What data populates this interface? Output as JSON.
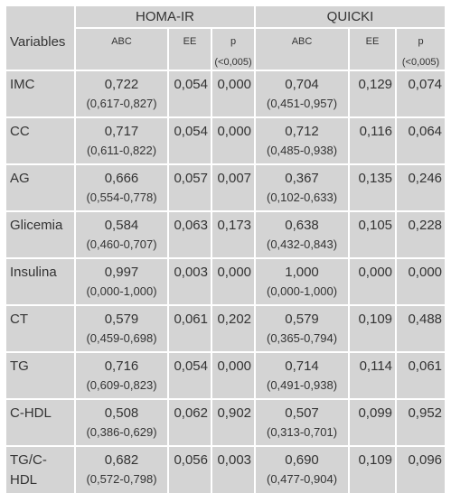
{
  "table": {
    "header": {
      "variables": "Variables",
      "group1": "HOMA-IR",
      "group2": "QUICKI",
      "abc": "ABC",
      "ee": "EE",
      "p": "p",
      "p_note": "(<0,005)"
    },
    "rows": [
      {
        "variable": "IMC",
        "variable_line2": "",
        "h_abc": "0,722",
        "h_ci": "(0,617-0,827)",
        "h_ee": "0,054",
        "h_p": "0,000",
        "q_abc": "0,704",
        "q_ci": "(0,451-0,957)",
        "q_ee": "0,129",
        "q_p": "0,074"
      },
      {
        "variable": "CC",
        "variable_line2": "",
        "h_abc": "0,717",
        "h_ci": "(0,611-0,822)",
        "h_ee": "0,054",
        "h_p": "0,000",
        "q_abc": "0,712",
        "q_ci": "(0,485-0,938)",
        "q_ee": "0,116",
        "q_p": "0,064"
      },
      {
        "variable": "AG",
        "variable_line2": "",
        "h_abc": "0,666",
        "h_ci": "(0,554-0,778)",
        "h_ee": "0,057",
        "h_p": "0,007",
        "q_abc": "0,367",
        "q_ci": "(0,102-0,633)",
        "q_ee": "0,135",
        "q_p": "0,246"
      },
      {
        "variable": "Glicemia",
        "variable_line2": "",
        "h_abc": "0,584",
        "h_ci": "(0,460-0,707)",
        "h_ee": "0,063",
        "h_p": "0,173",
        "q_abc": "0,638",
        "q_ci": "(0,432-0,843)",
        "q_ee": "0,105",
        "q_p": "0,228"
      },
      {
        "variable": "Insulina",
        "variable_line2": "",
        "h_abc": "0,997",
        "h_ci": "(0,000-1,000)",
        "h_ee": "0,003",
        "h_p": "0,000",
        "q_abc": "1,000",
        "q_ci": "(0,000-1,000)",
        "q_ee": "0,000",
        "q_p": "0,000"
      },
      {
        "variable": "CT",
        "variable_line2": "",
        "h_abc": "0,579",
        "h_ci": "(0,459-0,698)",
        "h_ee": "0,061",
        "h_p": "0,202",
        "q_abc": "0,579",
        "q_ci": "(0,365-0,794)",
        "q_ee": "0,109",
        "q_p": "0,488"
      },
      {
        "variable": "TG",
        "variable_line2": "",
        "h_abc": "0,716",
        "h_ci": "(0,609-0,823)",
        "h_ee": "0,054",
        "h_p": "0,000",
        "q_abc": "0,714",
        "q_ci": "(0,491-0,938)",
        "q_ee": "0,114",
        "q_p": "0,061"
      },
      {
        "variable": "C-HDL",
        "variable_line2": "",
        "h_abc": "0,508",
        "h_ci": "(0,386-0,629)",
        "h_ee": "0,062",
        "h_p": "0,902",
        "q_abc": "0,507",
        "q_ci": "(0,313-0,701)",
        "q_ee": "0,099",
        "q_p": "0,952"
      },
      {
        "variable": "TG/C-",
        "variable_line2": "HDL",
        "h_abc": "0,682",
        "h_ci": "(0,572-0,798)",
        "h_ee": "0,056",
        "h_p": "0,003",
        "q_abc": "0,690",
        "q_ci": "(0,477-0,904)",
        "q_ee": "0,109",
        "q_p": "0,096"
      }
    ]
  }
}
